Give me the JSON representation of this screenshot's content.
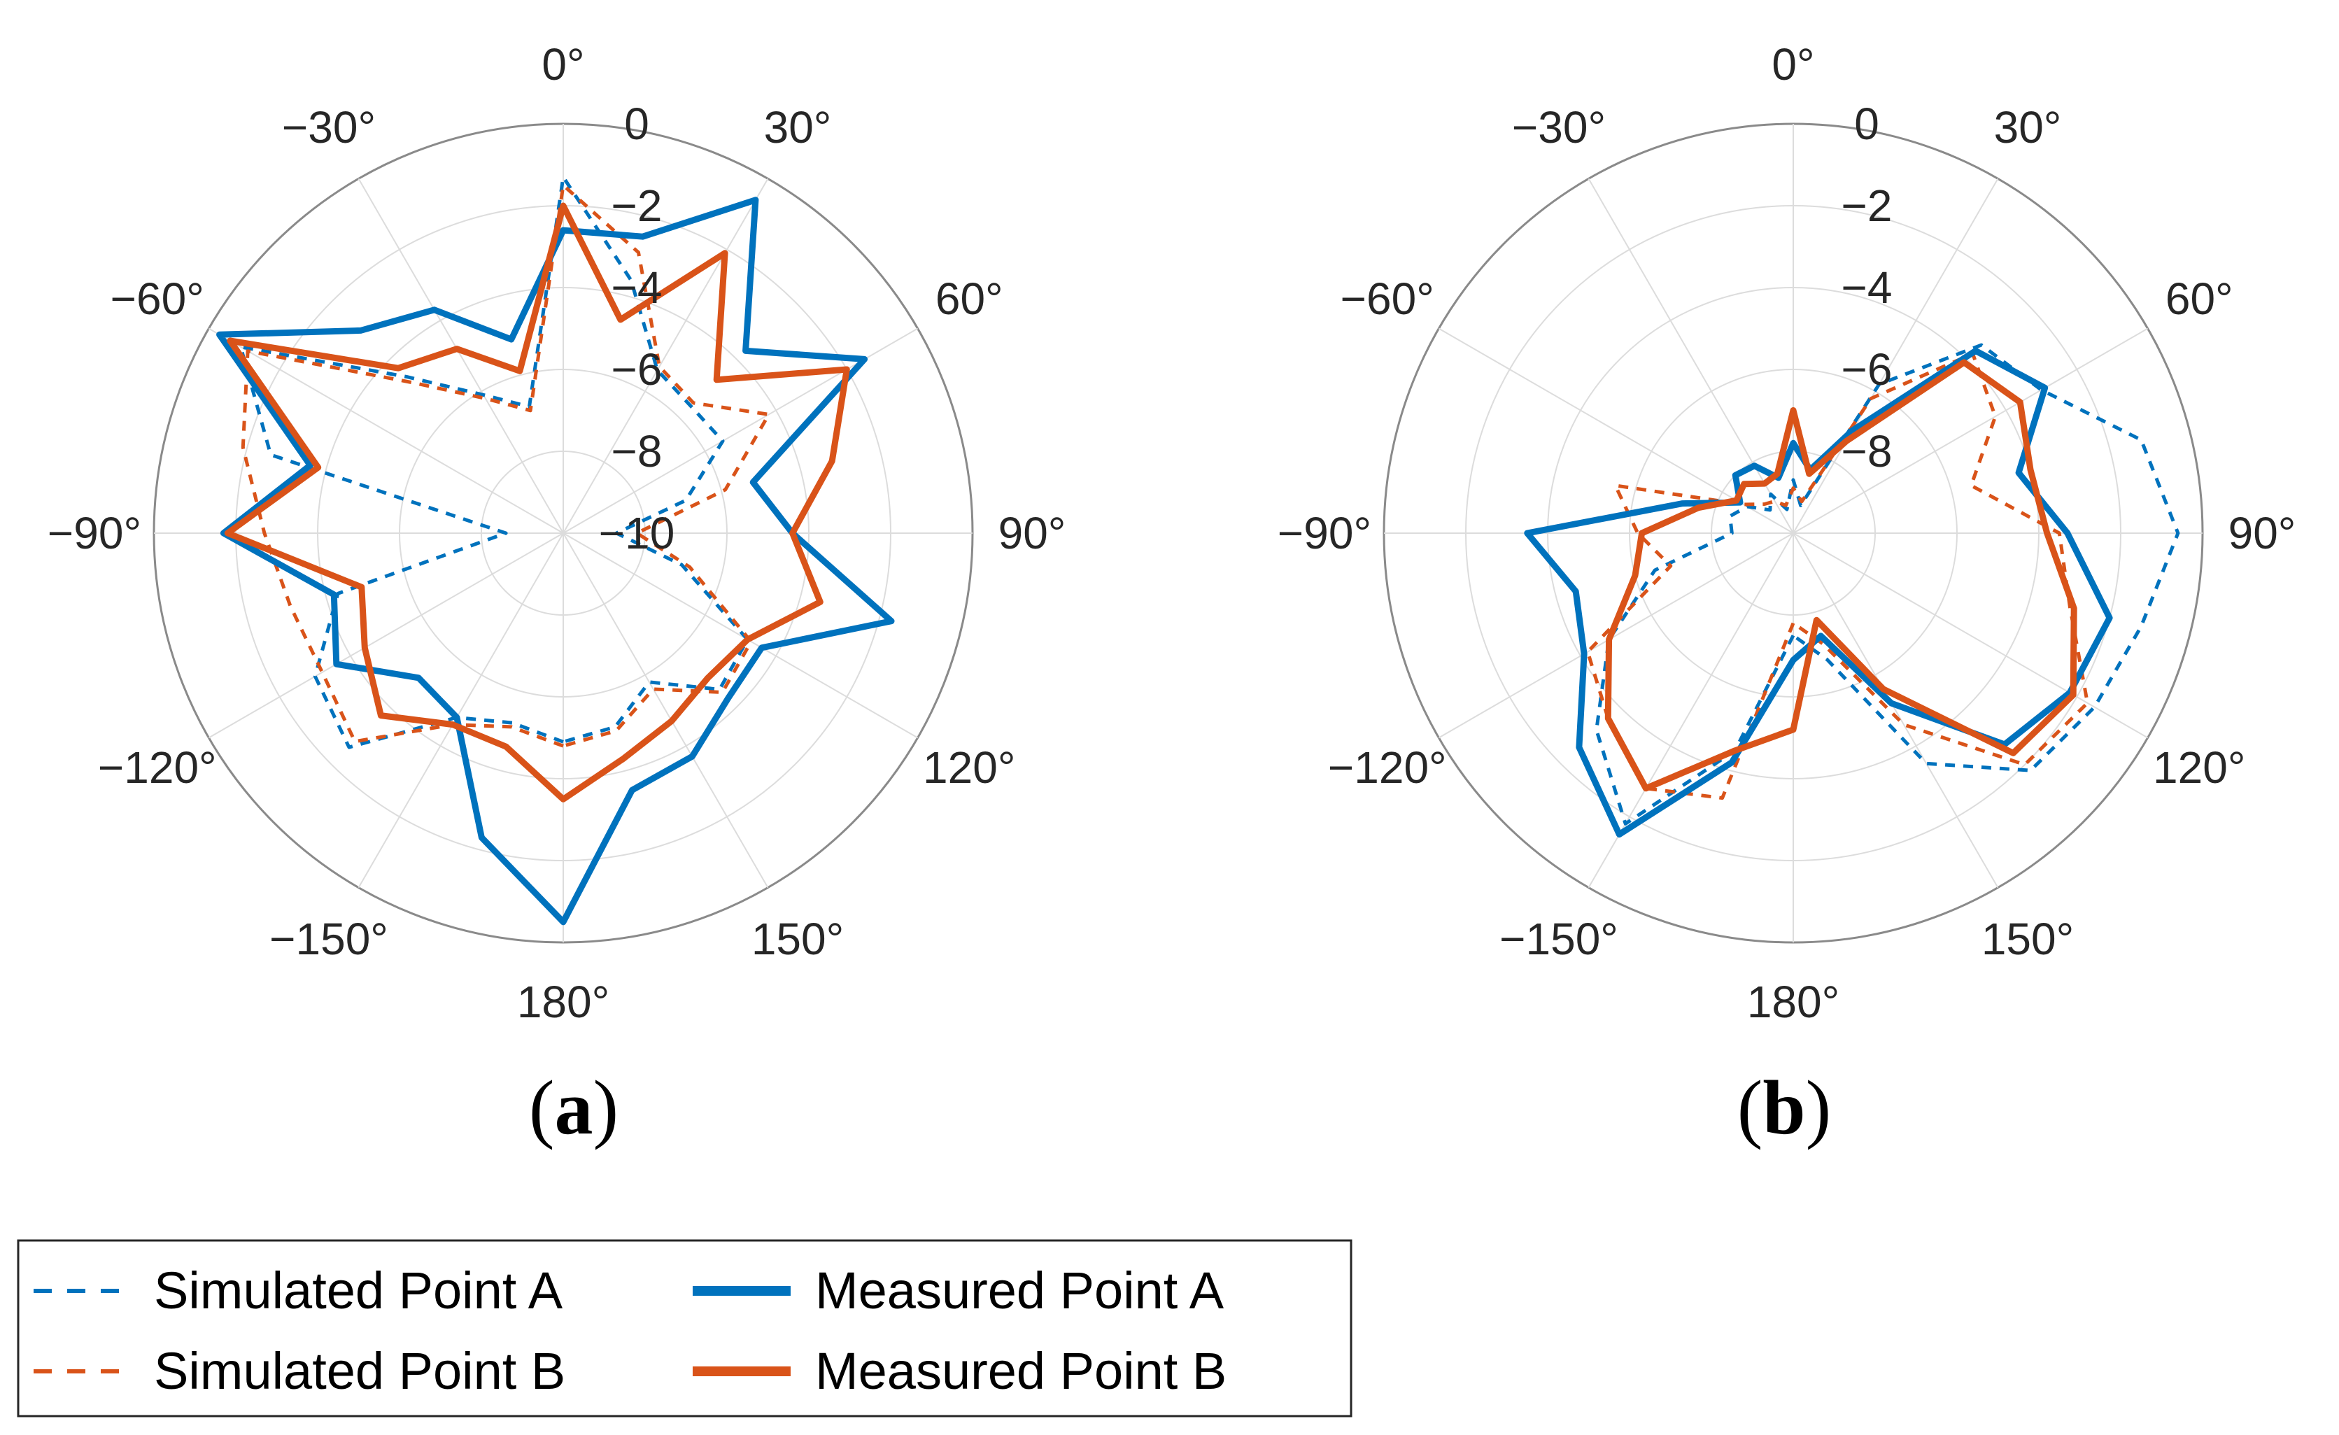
{
  "chart_data": [
    {
      "type": "polar-line",
      "panel_label": {
        "open": "(",
        "letter": "a",
        "close": ")"
      },
      "angle_ticks": [
        "0°",
        "30°",
        "60°",
        "90°",
        "120°",
        "150°",
        "180°",
        "−150°",
        "−120°",
        "−90°",
        "−60°",
        "−30°"
      ],
      "angle_tick_values": [
        0,
        30,
        60,
        90,
        120,
        150,
        180,
        -150,
        -120,
        -90,
        -60,
        -30
      ],
      "radial_ticks": [
        "0",
        "−2",
        "−4",
        "−6",
        "−8",
        "−10"
      ],
      "radial_tick_values": [
        0,
        -2,
        -4,
        -6,
        -8,
        -10
      ],
      "r_range": [
        -10,
        0
      ],
      "angle_direction": "clockwise",
      "zero_location": "top",
      "series": [
        {
          "name": "Simulated Point A",
          "color": "#0072BD",
          "style": "dashed",
          "theta": [
            -180,
            -165,
            -150,
            -135,
            -120,
            -105,
            -90,
            -75,
            -60,
            -45,
            -30,
            -15,
            0,
            15,
            30,
            45,
            60,
            75,
            90,
            105,
            120,
            135,
            150,
            165,
            180
          ],
          "r": [
            -4.9,
            -5.2,
            -4.8,
            -2.6,
            -3.0,
            -4.3,
            -8.6,
            -2.6,
            -0.9,
            -4.6,
            -6.1,
            -6.8,
            -1.3,
            -3.6,
            -5.4,
            -5.6,
            -5.5,
            -6.9,
            -8.7,
            -7.0,
            -4.8,
            -4.6,
            -5.8,
            -5.1,
            -4.9
          ]
        },
        {
          "name": "Simulated Point B",
          "color": "#D95319",
          "style": "dashed",
          "theta": [
            -180,
            -165,
            -150,
            -135,
            -120,
            -105,
            -90,
            -75,
            -60,
            -45,
            -30,
            -15,
            0,
            15,
            30,
            45,
            60,
            75,
            90,
            105,
            120,
            135,
            150,
            165,
            180
          ],
          "r": [
            -4.8,
            -5.1,
            -4.6,
            -2.8,
            -3.2,
            -3.1,
            -2.7,
            -1.9,
            -1.1,
            -4.8,
            -6.2,
            -6.9,
            -1.5,
            -2.9,
            -5.3,
            -5.5,
            -4.2,
            -5.9,
            -8.2,
            -6.8,
            -4.7,
            -4.5,
            -5.6,
            -5.0,
            -4.8
          ]
        },
        {
          "name": "Measured Point A",
          "color": "#0072BD",
          "style": "solid",
          "theta": [
            -180,
            -165,
            -150,
            -135,
            -120,
            -105,
            -90,
            -75,
            -60,
            -45,
            -30,
            -15,
            0,
            15,
            30,
            45,
            60,
            75,
            90,
            105,
            120,
            135,
            150,
            165,
            180
          ],
          "r": [
            -0.5,
            -2.3,
            -4.8,
            -5.0,
            -3.6,
            -4.2,
            -1.7,
            -3.6,
            -0.3,
            -3.0,
            -3.7,
            -5.1,
            -2.6,
            -2.5,
            -0.6,
            -3.7,
            -1.5,
            -5.2,
            -4.4,
            -1.7,
            -4.4,
            -4.3,
            -3.7,
            -3.5,
            -0.5
          ]
        },
        {
          "name": "Measured Point B",
          "color": "#D95319",
          "style": "solid",
          "theta": [
            -180,
            -165,
            -150,
            -135,
            -120,
            -105,
            -90,
            -75,
            -60,
            -45,
            -30,
            -15,
            0,
            15,
            30,
            45,
            60,
            75,
            90,
            105,
            120,
            135,
            150,
            165,
            180
          ],
          "r": [
            -3.5,
            -4.6,
            -4.6,
            -3.7,
            -4.4,
            -4.9,
            -1.8,
            -3.8,
            -0.6,
            -4.3,
            -4.8,
            -5.9,
            -2.0,
            -4.6,
            -2.1,
            -4.7,
            -2.0,
            -3.2,
            -4.4,
            -3.5,
            -4.8,
            -5.0,
            -4.7,
            -4.3,
            -3.5
          ]
        }
      ]
    },
    {
      "type": "polar-line",
      "panel_label": {
        "open": "(",
        "letter": "b",
        "close": ")"
      },
      "angle_ticks": [
        "0°",
        "30°",
        "60°",
        "90°",
        "120°",
        "150°",
        "180°",
        "−150°",
        "−120°",
        "−90°",
        "−60°",
        "−30°"
      ],
      "angle_tick_values": [
        0,
        30,
        60,
        90,
        120,
        150,
        180,
        -150,
        -120,
        -90,
        -60,
        -30
      ],
      "radial_ticks": [
        "0",
        "−2",
        "−4",
        "−6",
        "−8"
      ],
      "radial_tick_values": [
        0,
        -2,
        -4,
        -6,
        -8
      ],
      "r_range": [
        -10,
        0
      ],
      "angle_direction": "clockwise",
      "zero_location": "top",
      "series": [
        {
          "name": "Simulated Point A",
          "color": "#0072BD",
          "style": "dashed",
          "theta": [
            -180,
            -165,
            -150,
            -135,
            -120,
            -105,
            -90,
            -75,
            -60,
            -45,
            -30,
            -15,
            0,
            15,
            30,
            45,
            60,
            75,
            90,
            105,
            120,
            135,
            150,
            165,
            180
          ],
          "r": [
            -7.5,
            -4.5,
            -1.8,
            -3.2,
            -4.8,
            -6.5,
            -8.5,
            -8.4,
            -8.7,
            -9.2,
            -8.9,
            -9.4,
            -8.7,
            -9.3,
            -5.8,
            -3.5,
            -3.0,
            -1.2,
            -0.6,
            -1.2,
            -1.5,
            -1.8,
            -3.5,
            -6.8,
            -7.5
          ]
        },
        {
          "name": "Simulated Point B",
          "color": "#D95319",
          "style": "dashed",
          "theta": [
            -180,
            -165,
            -150,
            -135,
            -120,
            -105,
            -90,
            -75,
            -60,
            -45,
            -30,
            -15,
            0,
            15,
            30,
            45,
            60,
            75,
            90,
            105,
            120,
            135,
            150,
            165,
            180
          ],
          "r": [
            -7.8,
            -3.3,
            -2.8,
            -3.6,
            -4.2,
            -6.9,
            -6.2,
            -5.5,
            -8.6,
            -9.0,
            -9.1,
            -9.3,
            -8.9,
            -9.2,
            -6.2,
            -3.8,
            -4.3,
            -5.5,
            -3.5,
            -3.0,
            -1.7,
            -2.0,
            -4.6,
            -7.2,
            -7.8
          ]
        },
        {
          "name": "Measured Point A",
          "color": "#0072BD",
          "style": "solid",
          "theta": [
            -180,
            -165,
            -150,
            -135,
            -120,
            -105,
            -90,
            -75,
            -60,
            -45,
            -30,
            -15,
            0,
            15,
            30,
            45,
            60,
            75,
            90,
            105,
            120,
            135,
            150,
            165,
            180
          ],
          "r": [
            -6.9,
            -4.2,
            -1.5,
            -2.6,
            -4.1,
            -4.5,
            -3.5,
            -7.2,
            -8.5,
            -8.0,
            -8.1,
            -8.6,
            -7.8,
            -8.4,
            -7.1,
            -3.7,
            -2.9,
            -4.3,
            -3.3,
            -2.0,
            -2.2,
            -2.7,
            -5.2,
            -7.4,
            -6.9
          ]
        },
        {
          "name": "Measured Point B",
          "color": "#D95319",
          "style": "solid",
          "theta": [
            -180,
            -165,
            -150,
            -135,
            -120,
            -105,
            -90,
            -75,
            -60,
            -45,
            -30,
            -15,
            0,
            15,
            30,
            45,
            60,
            75,
            90,
            105,
            120,
            135,
            150,
            165,
            180
          ],
          "r": [
            -5.2,
            -4.5,
            -2.8,
            -3.6,
            -4.8,
            -6.0,
            -6.3,
            -7.6,
            -8.4,
            -8.3,
            -8.6,
            -8.5,
            -7.0,
            -8.5,
            -7.4,
            -4.1,
            -3.6,
            -4.0,
            -3.8,
            -2.9,
            -2.1,
            -2.4,
            -5.6,
            -7.8,
            -5.2
          ]
        }
      ]
    }
  ],
  "legend": {
    "items": [
      {
        "label": "Simulated Point A",
        "color": "#0072BD",
        "style": "dashed"
      },
      {
        "label": "Measured Point A",
        "color": "#0072BD",
        "style": "solid"
      },
      {
        "label": "Simulated Point B",
        "color": "#D95319",
        "style": "dashed"
      },
      {
        "label": "Measured Point B",
        "color": "#D95319",
        "style": "solid"
      }
    ]
  }
}
